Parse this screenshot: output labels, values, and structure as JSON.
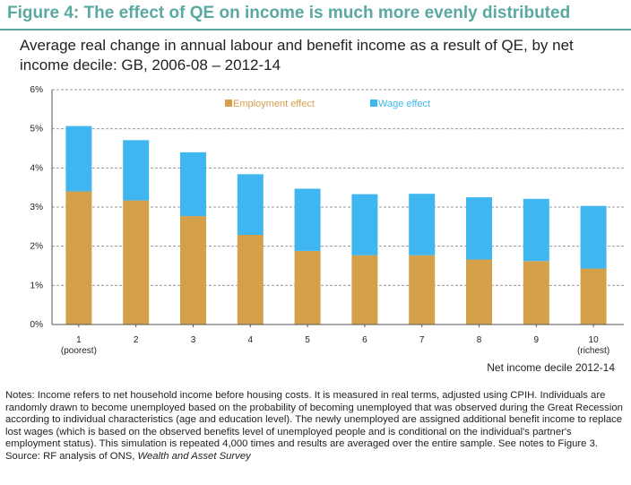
{
  "figure": {
    "title": "Figure 4: The effect of QE on income is much more evenly distributed",
    "subtitle": "Average real change in annual labour and benefit income as a result of QE, by net income decile: GB, 2006-08 – 2012-14"
  },
  "colors": {
    "accent": "#5aa9a0",
    "employment": "#d4a04a",
    "wage": "#3fb6f0",
    "gridline": "#999999"
  },
  "chart_data": {
    "type": "bar",
    "stacked": true,
    "categories": [
      "1",
      "2",
      "3",
      "4",
      "5",
      "6",
      "7",
      "8",
      "9",
      "10"
    ],
    "category_sublabels": [
      "(poorest)",
      "",
      "",
      "",
      "",
      "",
      "",
      "",
      "",
      "(richest)"
    ],
    "series": [
      {
        "name": "Employment effect",
        "color": "#d4a04a",
        "values": [
          3.4,
          3.17,
          2.77,
          2.29,
          1.88,
          1.77,
          1.77,
          1.66,
          1.62,
          1.43
        ]
      },
      {
        "name": "Wage effect",
        "color": "#3fb6f0",
        "values": [
          1.67,
          1.54,
          1.63,
          1.55,
          1.59,
          1.56,
          1.57,
          1.59,
          1.59,
          1.6
        ]
      }
    ],
    "xlabel": "Net income decile 2012-14",
    "ylabel": "",
    "ylim": [
      0,
      6
    ],
    "yticks": [
      0,
      1,
      2,
      3,
      4,
      5,
      6
    ],
    "ytick_labels": [
      "0%",
      "1%",
      "2%",
      "3%",
      "4%",
      "5%",
      "6%"
    ],
    "grid": "horizontal dashed",
    "legend_position": "top"
  },
  "notes": {
    "text": "Notes: Income refers to net household income before housing costs. It is measured in real terms, adjusted using CPIH. Individuals are randomly drawn to become unemployed based on the probability of becoming unemployed that was observed during the Great Recession according to individual characteristics (age and education level). The newly unemployed are assigned additional benefit income to replace lost wages (which is based on the observed benefits level of unemployed people and is conditional on the individual's partner's employment status). This simulation is repeated 4,000 times and results are averaged over the entire sample. See notes to Figure 3.",
    "source_prefix": "Source: RF analysis of ONS, ",
    "source_italic": "Wealth and Asset Survey"
  }
}
